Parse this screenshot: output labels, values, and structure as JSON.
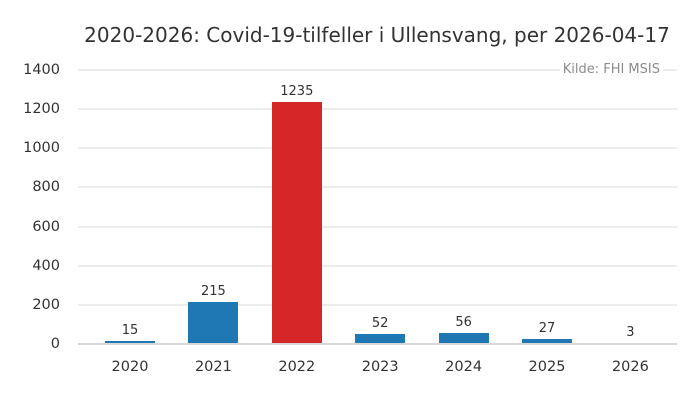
{
  "chart_data": {
    "type": "bar",
    "title": "2020-2026: Covid-19-tilfeller i Ullensvang, per 2026-04-17",
    "source_annotation": "Kilde: FHI MSIS",
    "categories": [
      "2020",
      "2021",
      "2022",
      "2023",
      "2024",
      "2025",
      "2026"
    ],
    "values": [
      15,
      215,
      1235,
      52,
      56,
      27,
      3
    ],
    "value_labels": [
      "15",
      "215",
      "1235",
      "52",
      "56",
      "27",
      "3"
    ],
    "bar_colors": [
      "#1f77b4",
      "#1f77b4",
      "#d62728",
      "#1f77b4",
      "#1f77b4",
      "#1f77b4",
      "#1f77b4"
    ],
    "xlabel": "",
    "ylabel": "",
    "ylim": [
      0,
      1400
    ],
    "yticks": [
      0,
      200,
      400,
      600,
      800,
      1000,
      1200,
      1400
    ],
    "grid": true,
    "legend": false,
    "colors": {
      "default_bar": "#1f77b4",
      "highlight_bar": "#d62728",
      "grid": "#ececec",
      "zero_line": "#d8d8d8",
      "text": "#333333",
      "source_text": "#8c8c8c",
      "background": "#ffffff"
    }
  }
}
